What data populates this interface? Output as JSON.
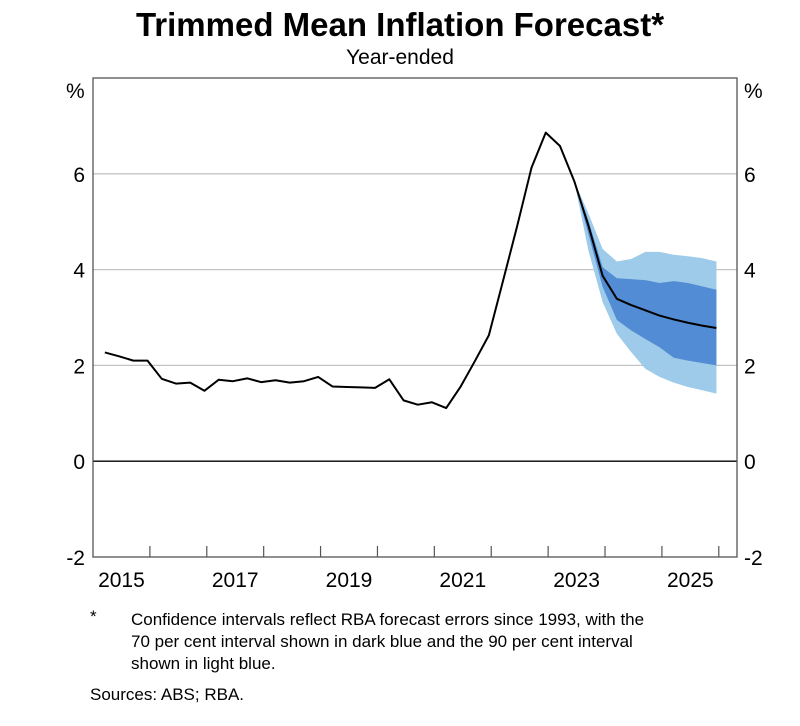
{
  "chart_data": {
    "type": "line",
    "title": "Trimmed Mean Inflation Forecast*",
    "subtitle": "Year-ended",
    "ylabel_left": "%",
    "ylabel_right": "%",
    "ylim": [
      -2,
      8
    ],
    "yticks": [
      -2,
      0,
      2,
      4,
      6
    ],
    "xlim": [
      2015,
      2026.32
    ],
    "xtick_labels": [
      "2015",
      "2017",
      "2019",
      "2021",
      "2023",
      "2025"
    ],
    "grid": true,
    "colors": {
      "line": "#000000",
      "interval_70": "#528cd4",
      "interval_90": "#9dcbe9",
      "grid": "#c4c4c4"
    },
    "series": [
      {
        "kind": "actual",
        "x": [
          "2015-03",
          "2015-06",
          "2015-09",
          "2015-12",
          "2016-03",
          "2016-06",
          "2016-09",
          "2016-12",
          "2017-03",
          "2017-06",
          "2017-09",
          "2017-12",
          "2018-03",
          "2018-06",
          "2018-09",
          "2018-12",
          "2019-03",
          "2019-06",
          "2019-09",
          "2019-12",
          "2020-03",
          "2020-06",
          "2020-09",
          "2020-12",
          "2021-03",
          "2021-06",
          "2021-09",
          "2021-12",
          "2022-03",
          "2022-06",
          "2022-09",
          "2022-12",
          "2023-03",
          "2023-06"
        ],
        "y": [
          2.27,
          2.19,
          2.1,
          2.1,
          1.72,
          1.62,
          1.64,
          1.47,
          1.7,
          1.67,
          1.73,
          1.65,
          1.69,
          1.64,
          1.67,
          1.76,
          1.56,
          1.55,
          1.54,
          1.53,
          1.71,
          1.27,
          1.18,
          1.23,
          1.11,
          1.55,
          2.08,
          2.63,
          3.77,
          4.92,
          6.13,
          6.86,
          6.58,
          5.85
        ]
      },
      {
        "kind": "forecast",
        "x": [
          "2023-06",
          "2023-09",
          "2023-12",
          "2024-03",
          "2024-06",
          "2024-09",
          "2024-12",
          "2025-03",
          "2025-06",
          "2025-09",
          "2025-12"
        ],
        "y": [
          5.85,
          4.92,
          3.87,
          3.39,
          3.26,
          3.15,
          3.04,
          2.96,
          2.89,
          2.83,
          2.78
        ],
        "interval_70_upper": [
          5.85,
          5.02,
          4.05,
          3.82,
          3.8,
          3.78,
          3.72,
          3.76,
          3.72,
          3.65,
          3.58
        ],
        "interval_70_lower": [
          5.85,
          4.74,
          3.64,
          2.95,
          2.73,
          2.55,
          2.38,
          2.16,
          2.1,
          2.05,
          2.0
        ],
        "interval_90_upper": [
          5.85,
          5.17,
          4.43,
          4.17,
          4.22,
          4.37,
          4.37,
          4.31,
          4.28,
          4.24,
          4.17
        ],
        "interval_90_lower": [
          5.85,
          4.4,
          3.32,
          2.66,
          2.28,
          1.93,
          1.76,
          1.64,
          1.55,
          1.48,
          1.41
        ]
      }
    ]
  },
  "footnote": {
    "marker": "*",
    "lines": [
      "Confidence intervals reflect RBA forecast errors since 1993, with the",
      "70 per cent interval shown in dark blue and the 90 per cent interval",
      "shown in light blue."
    ]
  },
  "sources": "Sources: ABS; RBA."
}
